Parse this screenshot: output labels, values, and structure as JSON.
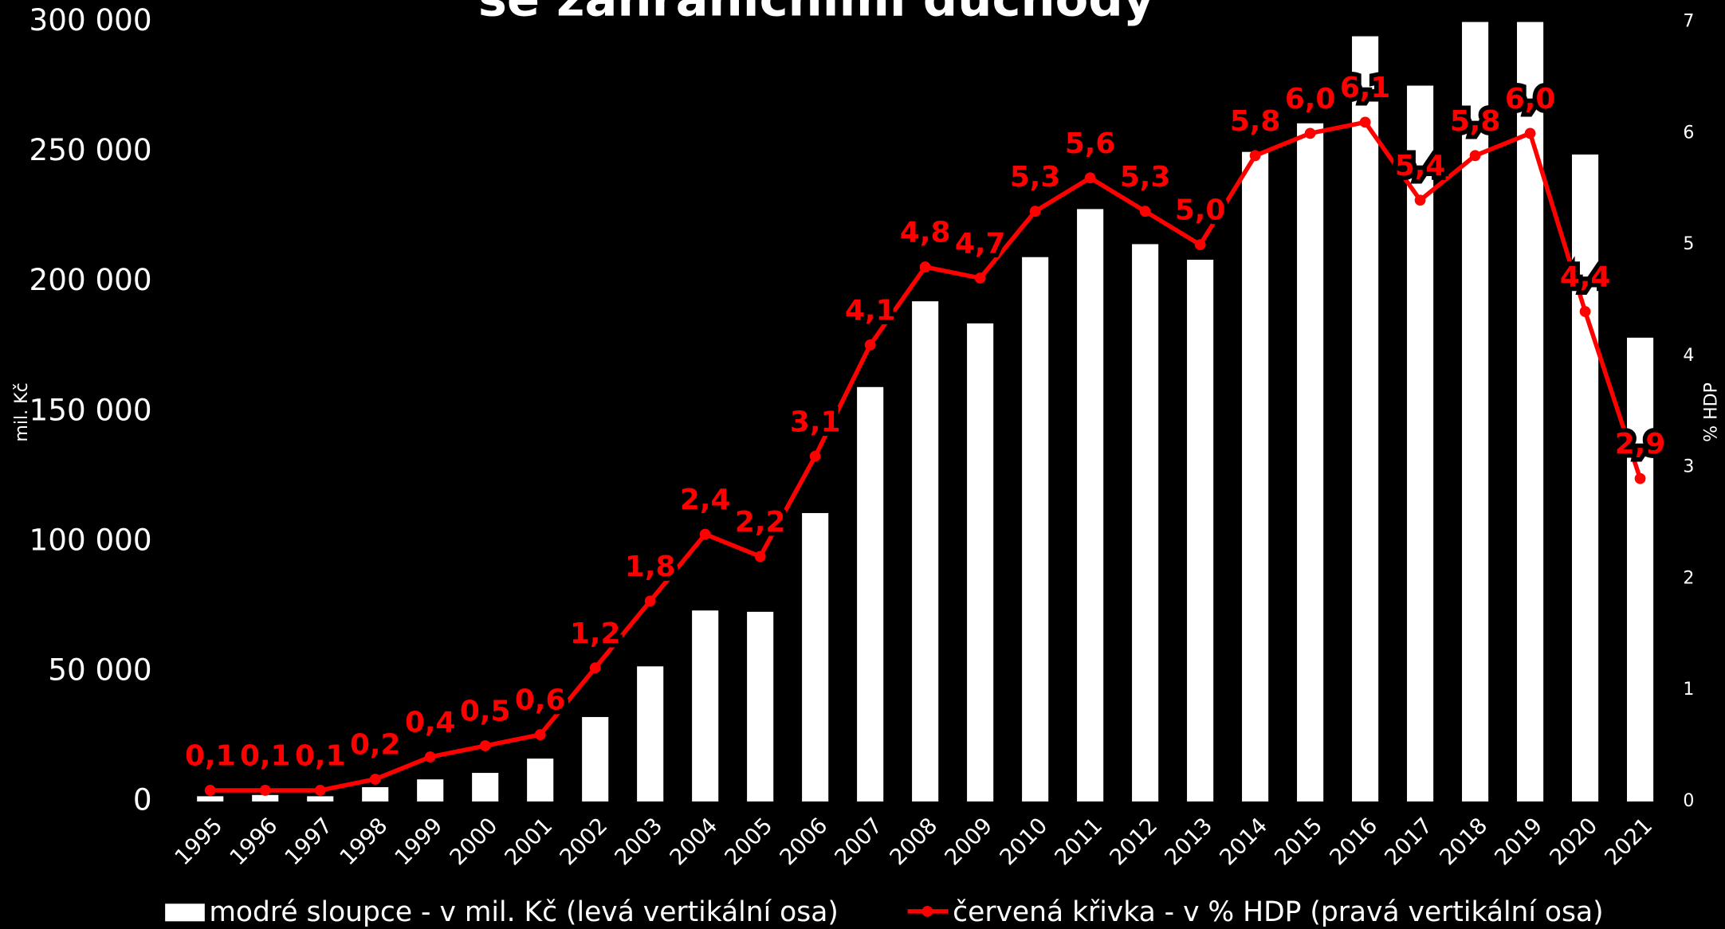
{
  "chart_data": {
    "type": "bar+line",
    "title": "se zahraničními důchody",
    "y_label": "mil. Kč",
    "y2_label": "% HDP",
    "categories": [
      "1995",
      "1996",
      "1997",
      "1998",
      "1999",
      "2000",
      "2001",
      "2002",
      "2003",
      "2004",
      "2005",
      "2006",
      "2007",
      "2008",
      "2009",
      "2010",
      "2011",
      "2012",
      "2013",
      "2014",
      "2015",
      "2016",
      "2017",
      "2018",
      "2019",
      "2020",
      "2021"
    ],
    "series": [
      {
        "name": "modré sloupce - v mil. Kč  (levá vertikální osa)",
        "type": "bar",
        "color": "#ffffff",
        "axis": "y",
        "values": [
          2000,
          2500,
          2000,
          5500,
          8500,
          11000,
          16500,
          32500,
          52000,
          73500,
          73000,
          111000,
          159500,
          192500,
          184000,
          209500,
          228000,
          214500,
          208500,
          250000,
          261000,
          294500,
          275500,
          300000,
          300000,
          249000,
          178500
        ]
      },
      {
        "name": "červená křivka - v % HDP (pravá vertikální osa)",
        "type": "line",
        "color": "#ff0000",
        "axis": "y2",
        "values": [
          0.1,
          0.1,
          0.1,
          0.2,
          0.4,
          0.5,
          0.6,
          1.2,
          1.8,
          2.4,
          2.2,
          3.1,
          4.1,
          4.8,
          4.7,
          5.3,
          5.6,
          5.3,
          5.0,
          5.8,
          6.0,
          6.1,
          5.4,
          5.8,
          6.0,
          4.4,
          2.9
        ],
        "value_labels": [
          "0,1",
          "0,1",
          "0,1",
          "0,2",
          "0,4",
          "0,5",
          "0,6",
          "1,2",
          "1,8",
          "2,4",
          "2,2",
          "3,1",
          "4,1",
          "4,8",
          "4,7",
          "5,3",
          "5,6",
          "5,3",
          "5,0",
          "5,8",
          "6,0",
          "6,1",
          "5,4",
          "5,8",
          "6,0",
          "4,4",
          "2,9"
        ]
      }
    ],
    "ylim": [
      0,
      300000
    ],
    "yticks": [
      0,
      {
        "value": 50000,
        "label": "50 000"
      },
      {
        "value": 100000,
        "label": "100 000"
      },
      {
        "value": 150000,
        "label": "150 000"
      },
      {
        "value": 200000,
        "label": "200 000"
      },
      {
        "value": 250000,
        "label": "250 000"
      },
      {
        "value": 300000,
        "label": "300 000"
      }
    ],
    "y2lim": [
      0,
      7
    ],
    "y2ticks": [
      0,
      1,
      2,
      3,
      4,
      5,
      6,
      7
    ],
    "grid": false
  }
}
